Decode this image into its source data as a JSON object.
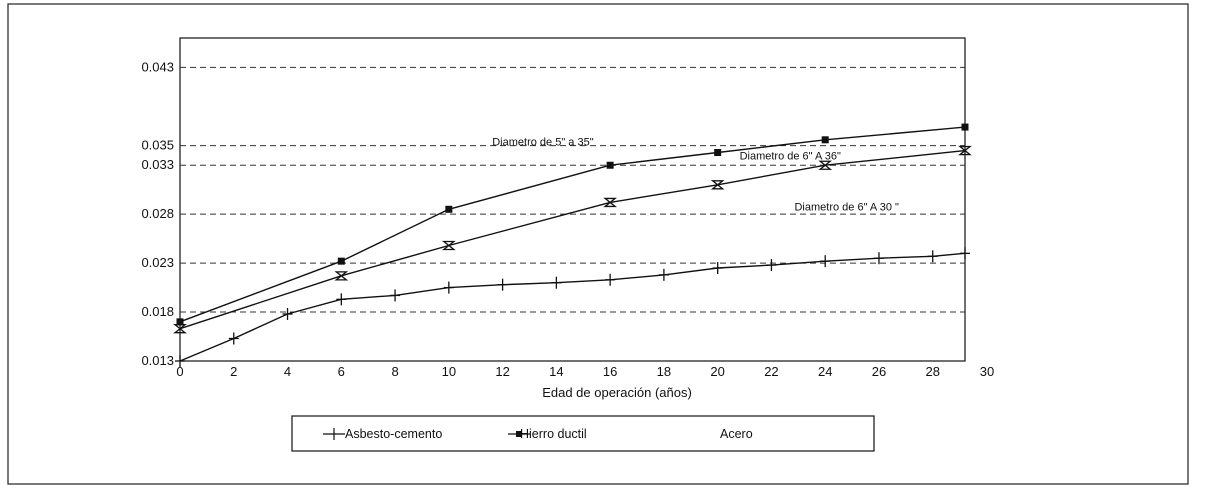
{
  "chart_data": {
    "type": "line",
    "title": "",
    "xlabel": "Edad de operación (años)",
    "ylabel": "",
    "xlim": [
      0,
      30
    ],
    "ylim": [
      0.013,
      0.046
    ],
    "x_ticks": [
      "0",
      "2",
      "4",
      "6",
      "8",
      "10",
      "12",
      "14",
      "16",
      "18",
      "20",
      "22",
      "24",
      "26",
      "28",
      "30"
    ],
    "y_ticks": [
      {
        "value": 0.013,
        "label": "0.013"
      },
      {
        "value": 0.018,
        "label": "0.018"
      },
      {
        "value": 0.023,
        "label": "0.023"
      },
      {
        "value": 0.028,
        "label": "0.028"
      },
      {
        "value": 0.033,
        "label": "0.033"
      },
      {
        "value": 0.035,
        "label": "0.035"
      },
      {
        "value": 0.043,
        "label": "0.043"
      }
    ],
    "grid": "horizontal dashed",
    "legend_position": "bottom",
    "series": [
      {
        "name": "Asbesto-cemento",
        "marker": "plus",
        "x": [
          0,
          2,
          4,
          6,
          8,
          10,
          12,
          14,
          16,
          18,
          20,
          22,
          24,
          26,
          28,
          30
        ],
        "y": [
          0.013,
          0.0153,
          0.0178,
          0.0193,
          0.0197,
          0.0205,
          0.0208,
          0.021,
          0.0213,
          0.0218,
          0.0225,
          0.0228,
          0.0232,
          0.0235,
          0.0237,
          0.024
        ]
      },
      {
        "name": "Hierro ductil",
        "legend_label": "Hierro ductil",
        "marker": "square",
        "x": [
          0,
          6,
          10,
          16,
          20,
          24,
          30
        ],
        "y": [
          0.017,
          0.0232,
          0.0285,
          0.033,
          0.0343,
          0.0356,
          0.0369
        ]
      },
      {
        "name": "Acero",
        "legend_label": "Acero",
        "marker": "hourglass",
        "x": [
          0,
          6,
          10,
          16,
          20,
          24,
          30
        ],
        "y": [
          0.0163,
          0.0217,
          0.0248,
          0.0292,
          0.031,
          0.033,
          0.0345
        ]
      }
    ],
    "annotations": [
      {
        "text": "Diametro de 5\" a 35\"",
        "x": 13.5,
        "y": 0.035
      },
      {
        "text": "Diametro de  6\" A 36\"",
        "x": 22.7,
        "y": 0.0336
      },
      {
        "text": "Diametro de 6\" A 30 \"",
        "x": 24.8,
        "y": 0.0284
      }
    ]
  },
  "colors": {
    "line": "#111111",
    "grid": "#333333",
    "background": "#ffffff"
  }
}
